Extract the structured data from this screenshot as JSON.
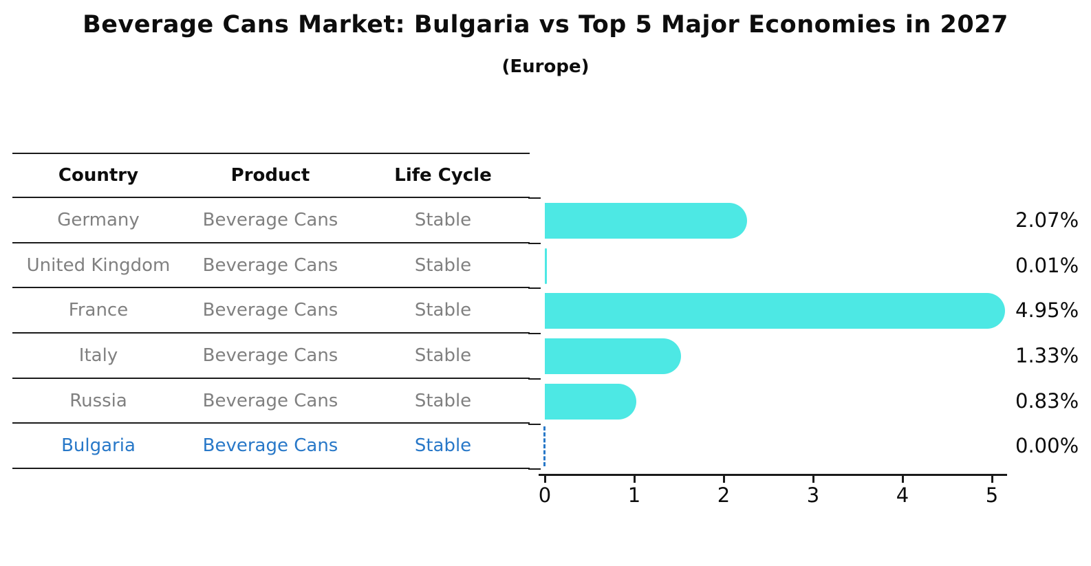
{
  "header": {
    "title": "Beverage Cans Market: Bulgaria vs Top 5 Major Economies in 2027",
    "subtitle": "(Europe)"
  },
  "table": {
    "columns": [
      "Country",
      "Product",
      "Life Cycle"
    ],
    "rows": [
      {
        "country": "Germany",
        "product": "Beverage Cans",
        "life_cycle": "Stable",
        "highlight": false
      },
      {
        "country": "United Kingdom",
        "product": "Beverage Cans",
        "life_cycle": "Stable",
        "highlight": false
      },
      {
        "country": "France",
        "product": "Beverage Cans",
        "life_cycle": "Stable",
        "highlight": false
      },
      {
        "country": "Italy",
        "product": "Beverage Cans",
        "life_cycle": "Stable",
        "highlight": false
      },
      {
        "country": "Russia",
        "product": "Beverage Cans",
        "life_cycle": "Stable",
        "highlight": true
      }
    ]
  },
  "chart_data": {
    "type": "bar",
    "orientation": "horizontal",
    "title": "Beverage Cans Market: Bulgaria vs Top 5 Major Economies in 2027 (Europe)",
    "categories": [
      "Germany",
      "United Kingdom",
      "France",
      "Italy",
      "Russia",
      "Bulgaria"
    ],
    "values": [
      2.07,
      0.01,
      4.95,
      1.33,
      0.83,
      0.0
    ],
    "value_labels": [
      "2.07%",
      "0.01%",
      "4.95%",
      "1.33%",
      "0.83%",
      "0.00%"
    ],
    "xlim": [
      0,
      5.2
    ],
    "xticks": [
      "0",
      "1",
      "2",
      "3",
      "4",
      "5"
    ],
    "grid": false,
    "legend": false,
    "bar_color": "#4de8e4",
    "highlight_color": "#2878c8",
    "highlight_index": 5
  },
  "colors": {
    "text": "#0d0d0d",
    "muted_row_text": "#808080",
    "table_line": "#1a1a1a"
  }
}
